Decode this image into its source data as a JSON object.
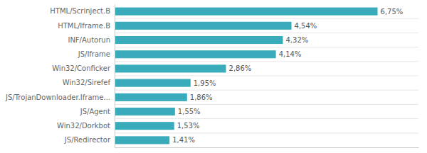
{
  "chart_data": {
    "type": "bar",
    "orientation": "horizontal",
    "categories": [
      "JS/Redirector",
      "Win32/Dorkbot",
      "JS/Agent",
      "JS/TrojanDownloader.Iframe...",
      "Win32/Sirefef",
      "Win32/Conficker",
      "JS/Iframe",
      "INF/Autorun",
      "HTML/Iframe.B",
      "HTML/Scrinject.B"
    ],
    "values": [
      1.41,
      1.53,
      1.55,
      1.86,
      1.95,
      2.86,
      4.14,
      4.32,
      4.54,
      6.75
    ],
    "value_labels": [
      "1,41%",
      "1,53%",
      "1,55%",
      "1,86%",
      "1,95%",
      "2,86%",
      "4,14%",
      "4,32%",
      "4,54%",
      "6,75%"
    ],
    "data_labels": true,
    "color": "#3aabbb",
    "xlim": [
      0,
      7.8
    ],
    "tick_labels": "y"
  }
}
